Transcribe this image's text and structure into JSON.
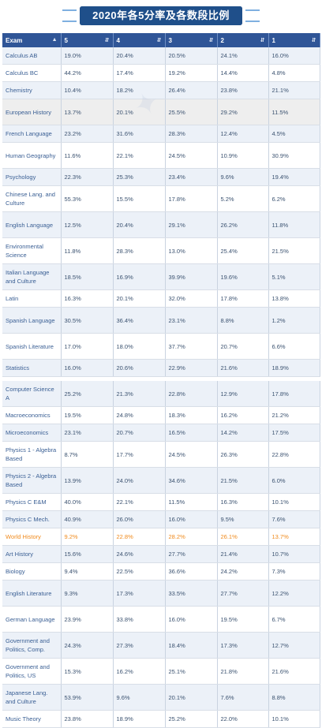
{
  "banner": {
    "title": "2020年各5分率及各数段比例"
  },
  "table": {
    "headers": [
      "Exam",
      "5",
      "4",
      "3",
      "2",
      "1"
    ],
    "group1": [
      {
        "exam": "Calculus AB",
        "v": [
          "19.0%",
          "20.4%",
          "20.5%",
          "24.1%",
          "16.0%"
        ]
      },
      {
        "exam": "Calculus BC",
        "v": [
          "44.2%",
          "17.4%",
          "19.2%",
          "14.4%",
          "4.8%"
        ]
      },
      {
        "exam": "Chemistry",
        "v": [
          "10.4%",
          "18.2%",
          "26.4%",
          "23.8%",
          "21.1%"
        ]
      },
      {
        "exam": "European History",
        "v": [
          "13.7%",
          "20.1%",
          "25.5%",
          "29.2%",
          "11.5%"
        ]
      },
      {
        "exam": "French Language",
        "v": [
          "23.2%",
          "31.6%",
          "28.3%",
          "12.4%",
          "4.5%"
        ]
      },
      {
        "exam": "Human Geography",
        "v": [
          "11.6%",
          "22.1%",
          "24.5%",
          "10.9%",
          "30.9%"
        ]
      },
      {
        "exam": "Psychology",
        "v": [
          "22.3%",
          "25.3%",
          "23.4%",
          "9.6%",
          "19.4%"
        ]
      },
      {
        "exam": "Chinese Lang. and Culture",
        "v": [
          "55.3%",
          "15.5%",
          "17.8%",
          "5.2%",
          "6.2%"
        ]
      },
      {
        "exam": "English Language",
        "v": [
          "12.5%",
          "20.4%",
          "29.1%",
          "26.2%",
          "11.8%"
        ]
      },
      {
        "exam": "Environmental Science",
        "v": [
          "11.8%",
          "28.3%",
          "13.0%",
          "25.4%",
          "21.5%"
        ]
      },
      {
        "exam": "Italian Language and Culture",
        "v": [
          "18.5%",
          "16.9%",
          "39.9%",
          "19.6%",
          "5.1%"
        ]
      },
      {
        "exam": "Latin",
        "v": [
          "16.3%",
          "20.1%",
          "32.0%",
          "17.8%",
          "13.8%"
        ]
      },
      {
        "exam": "Spanish Language",
        "v": [
          "30.5%",
          "36.4%",
          "23.1%",
          "8.8%",
          "1.2%"
        ]
      },
      {
        "exam": "Spanish Literature",
        "v": [
          "17.0%",
          "18.0%",
          "37.7%",
          "20.7%",
          "6.6%"
        ]
      },
      {
        "exam": "Statistics",
        "v": [
          "16.0%",
          "20.6%",
          "22.9%",
          "21.6%",
          "18.9%"
        ]
      }
    ],
    "group2": [
      {
        "exam": "Computer Science A",
        "v": [
          "25.2%",
          "21.3%",
          "22.8%",
          "12.9%",
          "17.8%"
        ]
      },
      {
        "exam": "Macroeconomics",
        "v": [
          "19.5%",
          "24.8%",
          "18.3%",
          "16.2%",
          "21.2%"
        ]
      },
      {
        "exam": "Microeconomics",
        "v": [
          "23.1%",
          "20.7%",
          "16.5%",
          "14.2%",
          "17.5%"
        ]
      },
      {
        "exam": "Physics 1 - Algebra Based",
        "v": [
          "8.7%",
          "17.7%",
          "24.5%",
          "26.3%",
          "22.8%"
        ]
      },
      {
        "exam": "Physics 2 - Algebra Based",
        "v": [
          "13.9%",
          "24.0%",
          "34.6%",
          "21.5%",
          "6.0%"
        ]
      },
      {
        "exam": "Physics C E&M",
        "v": [
          "40.0%",
          "22.1%",
          "11.5%",
          "16.3%",
          "10.1%"
        ]
      },
      {
        "exam": "Physics C Mech.",
        "v": [
          "40.9%",
          "26.0%",
          "16.0%",
          "9.5%",
          "7.6%"
        ]
      },
      {
        "exam": "World History",
        "v": [
          "9.2%",
          "22.8%",
          "28.2%",
          "26.1%",
          "13.7%"
        ],
        "highlight": true
      },
      {
        "exam": "Art History",
        "v": [
          "15.6%",
          "24.6%",
          "27.7%",
          "21.4%",
          "10.7%"
        ]
      },
      {
        "exam": "Biology",
        "v": [
          "9.4%",
          "22.5%",
          "36.6%",
          "24.2%",
          "7.3%"
        ]
      },
      {
        "exam": "English Literature",
        "v": [
          "9.3%",
          "17.3%",
          "33.5%",
          "27.7%",
          "12.2%"
        ]
      },
      {
        "exam": "German Language",
        "v": [
          "23.9%",
          "33.8%",
          "16.0%",
          "19.5%",
          "6.7%"
        ]
      },
      {
        "exam": "Government and Politics, Comp.",
        "v": [
          "24.3%",
          "27.3%",
          "18.4%",
          "17.3%",
          "12.7%"
        ]
      },
      {
        "exam": "Government and Politics, US",
        "v": [
          "15.3%",
          "16.2%",
          "25.1%",
          "21.8%",
          "21.6%"
        ]
      },
      {
        "exam": "Japanese Lang. and Culture",
        "v": [
          "53.9%",
          "9.6%",
          "20.1%",
          "7.6%",
          "8.8%"
        ]
      },
      {
        "exam": "Music Theory",
        "v": [
          "23.8%",
          "18.9%",
          "25.2%",
          "22.0%",
          "10.1%"
        ]
      }
    ],
    "heights1": [],
    "highlight_color": "#f08a1c"
  }
}
